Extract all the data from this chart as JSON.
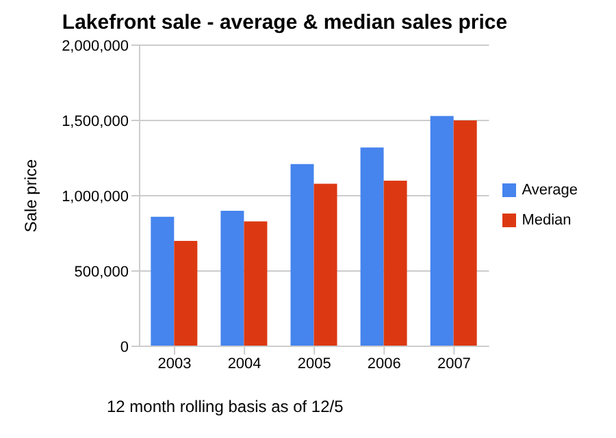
{
  "chart_data": {
    "type": "bar",
    "title": "Lakefront sale - average & median sales price",
    "ylabel": "Sale price",
    "categories": [
      "2003",
      "2004",
      "2005",
      "2006",
      "2007"
    ],
    "series": [
      {
        "name": "Average",
        "color": "#4684ee",
        "values": [
          860000,
          900000,
          1210000,
          1320000,
          1530000
        ]
      },
      {
        "name": "Median",
        "color": "#dc3912",
        "values": [
          700000,
          830000,
          1080000,
          1100000,
          1500000
        ]
      }
    ],
    "ylim": [
      0,
      2000000
    ],
    "yticks": [
      0,
      {
        "value": 500000,
        "label": "500,000"
      },
      {
        "value": 1000000,
        "label": "1,000,000"
      },
      {
        "value": 1500000,
        "label": "1,500,000"
      },
      {
        "value": 2000000,
        "label": "2,000,000"
      }
    ],
    "grid": "y",
    "legend": "right",
    "annotations": [
      "12 month rolling basis as of 12/5"
    ]
  }
}
